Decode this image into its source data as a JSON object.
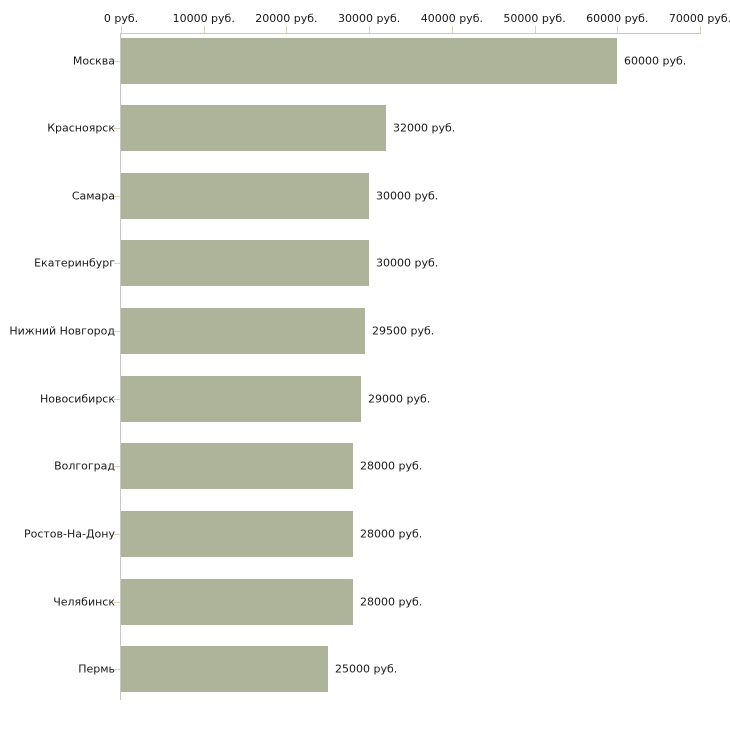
{
  "chart_data": {
    "type": "bar",
    "orientation": "horizontal",
    "title": "",
    "xlabel": "",
    "ylabel": "",
    "categories": [
      "Москва",
      "Красноярск",
      "Самара",
      "Екатеринбург",
      "Нижний Новгород",
      "Новосибирск",
      "Волгоград",
      "Ростов-На-Дону",
      "Челябинск",
      "Пермь"
    ],
    "values": [
      60000,
      32000,
      30000,
      30000,
      29500,
      29000,
      28000,
      28000,
      28000,
      25000
    ],
    "value_labels": [
      "60000 руб.",
      "32000 руб.",
      "30000 руб.",
      "30000 руб.",
      "29500 руб.",
      "29000 руб.",
      "28000 руб.",
      "28000 руб.",
      "28000 руб.",
      "25000 руб."
    ],
    "x_axis": {
      "position": "top",
      "min": 0,
      "max": 70000,
      "tick_values": [
        0,
        10000,
        20000,
        30000,
        40000,
        50000,
        60000,
        70000
      ],
      "tick_labels": [
        "0 руб.",
        "10000 руб.",
        "20000 руб.",
        "30000 руб.",
        "40000 руб.",
        "50000 руб.",
        "60000 руб.",
        "70000 руб."
      ]
    },
    "grid": false,
    "legend": false,
    "colors": {
      "bar": "#aeb49a",
      "axis_line": "#c6c6c6",
      "tick_mark": "#d8d8b0",
      "text": "#1a1a1a",
      "background": "#ffffff"
    }
  }
}
